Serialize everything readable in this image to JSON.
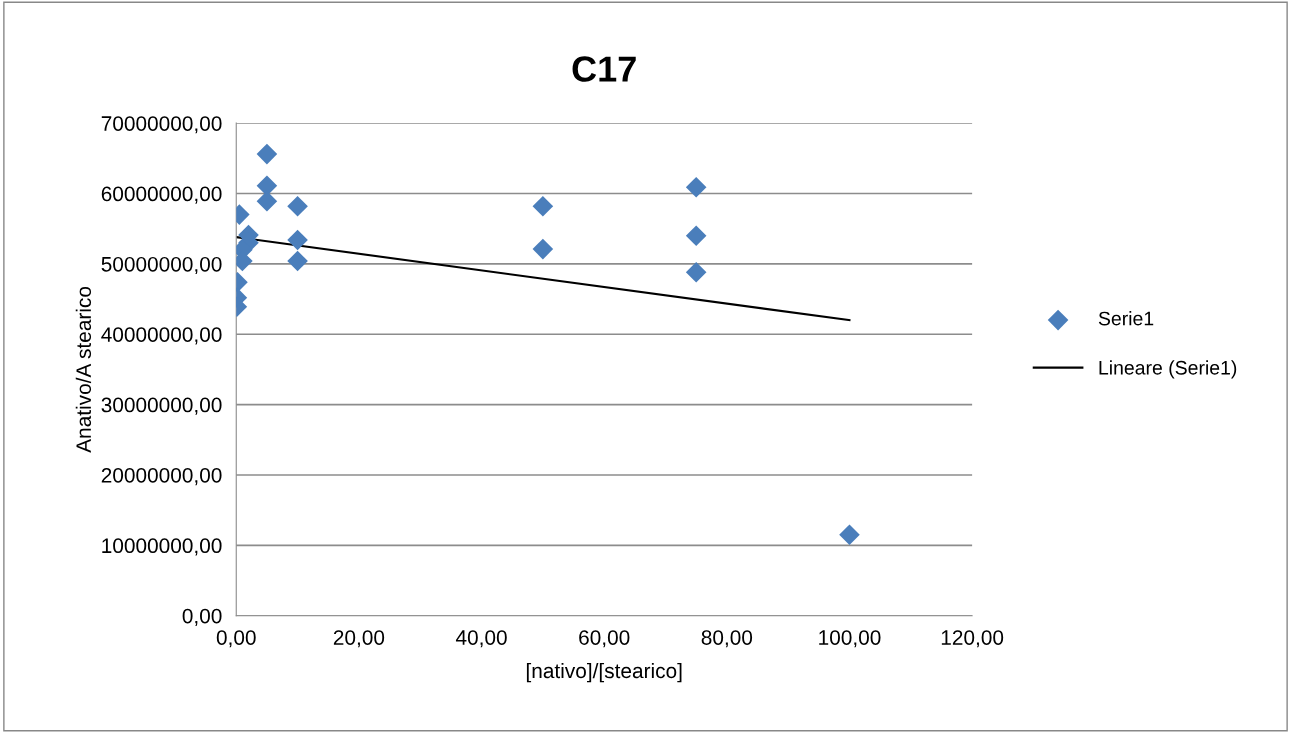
{
  "chart_data": {
    "type": "scatter",
    "title": "C17",
    "xlabel": "[nativo]/[stearico]",
    "ylabel": "Anativo/A stearico",
    "xlim": [
      0,
      120
    ],
    "ylim": [
      0,
      70000000
    ],
    "xticks": [
      {
        "value": 0,
        "label": "0,00"
      },
      {
        "value": 20,
        "label": "20,00"
      },
      {
        "value": 40,
        "label": "40,00"
      },
      {
        "value": 60,
        "label": "60,00"
      },
      {
        "value": 80,
        "label": "80,00"
      },
      {
        "value": 100,
        "label": "100,00"
      },
      {
        "value": 120,
        "label": "120,00"
      }
    ],
    "yticks": [
      {
        "value": 0,
        "label": "0,00"
      },
      {
        "value": 10000000,
        "label": "10000000,00"
      },
      {
        "value": 20000000,
        "label": "20000000,00"
      },
      {
        "value": 30000000,
        "label": "30000000,00"
      },
      {
        "value": 40000000,
        "label": "40000000,00"
      },
      {
        "value": 50000000,
        "label": "50000000,00"
      },
      {
        "value": 60000000,
        "label": "60000000,00"
      },
      {
        "value": 70000000,
        "label": "70000000,00"
      }
    ],
    "grid": "y",
    "legend": "right",
    "series": [
      {
        "name": "Serie1",
        "marker": "diamond",
        "color": "#4a7ebb",
        "x": [
          0.5,
          2,
          2,
          1,
          1,
          0.5,
          0.2,
          0.1,
          0.1,
          5,
          5,
          5,
          10,
          10,
          10,
          50,
          50,
          75,
          75,
          75,
          100
        ],
        "values": [
          57000000,
          54100000,
          53000000,
          52000000,
          50400000,
          null,
          47400000,
          45200000,
          43900000,
          65600000,
          61100000,
          58900000,
          58200000,
          53400000,
          50400000,
          58200000,
          52100000,
          60900000,
          54000000,
          48800000,
          11500000
        ]
      },
      {
        "name": "Lineare (Serie1)",
        "type": "line",
        "marker": "none",
        "line_style": "solid",
        "color": "#000000",
        "x": [
          0,
          100
        ],
        "values": [
          53800000,
          42000000
        ]
      }
    ]
  }
}
